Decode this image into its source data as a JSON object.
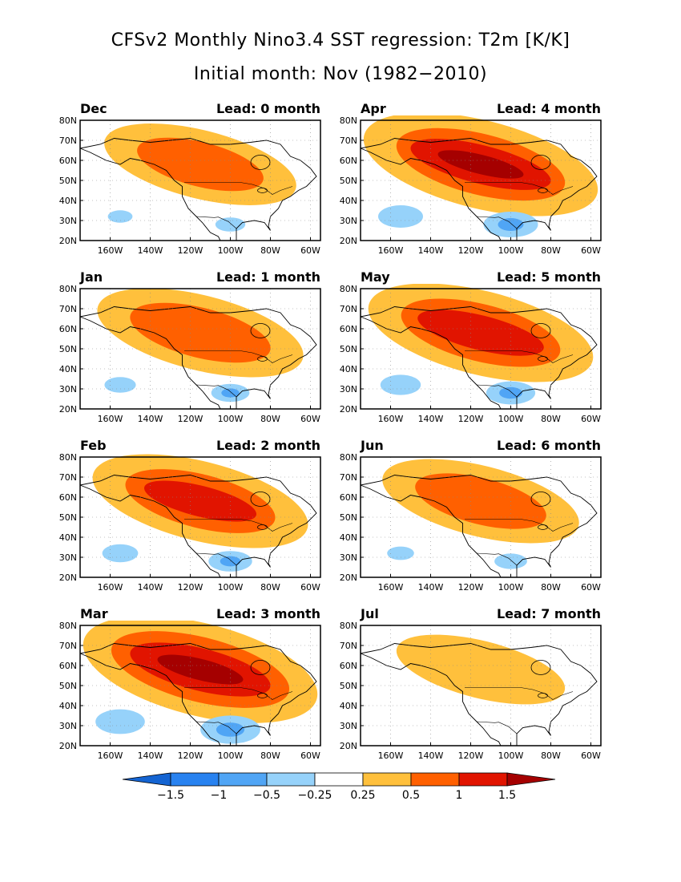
{
  "title": "CFSv2 Monthly Nino3.4 SST regression: T2m [K/K]",
  "subtitle": "Initial month: Nov (1982−2010)",
  "lat_labels": [
    "80N",
    "70N",
    "60N",
    "50N",
    "40N",
    "30N",
    "20N"
  ],
  "lon_labels": [
    "160W",
    "140W",
    "120W",
    "100W",
    "80W",
    "60W"
  ],
  "panels": [
    {
      "month": "Dec",
      "lead": "Lead: 0 month",
      "intensity": 0.55
    },
    {
      "month": "Apr",
      "lead": "Lead: 4 month",
      "intensity": 1.0
    },
    {
      "month": "Jan",
      "lead": "Lead: 1 month",
      "intensity": 0.7
    },
    {
      "month": "May",
      "lead": "Lead: 5 month",
      "intensity": 0.9
    },
    {
      "month": "Feb",
      "lead": "Lead: 2 month",
      "intensity": 0.8
    },
    {
      "month": "Jun",
      "lead": "Lead: 6 month",
      "intensity": 0.6
    },
    {
      "month": "Mar",
      "lead": "Lead: 3 month",
      "intensity": 1.1
    },
    {
      "month": "Jul",
      "lead": "Lead: 7 month",
      "intensity": 0.3
    }
  ],
  "colorbar": {
    "labels": [
      "−1.5",
      "−1",
      "−0.5",
      "−0.25",
      "0.25",
      "0.5",
      "1",
      "1.5"
    ],
    "colors": [
      "#1464d2",
      "#2882f0",
      "#50a5f5",
      "#96d2fa",
      "#ffffff",
      "#ffc03c",
      "#ff6000",
      "#e11400",
      "#a50000"
    ]
  },
  "palette": {
    "neg1": "#96d2fa",
    "neg2": "#50a5f5",
    "neg3": "#2882f0",
    "pos1": "#ffc03c",
    "pos2": "#ff6000",
    "pos3": "#e11400",
    "pos4": "#a50000"
  }
}
